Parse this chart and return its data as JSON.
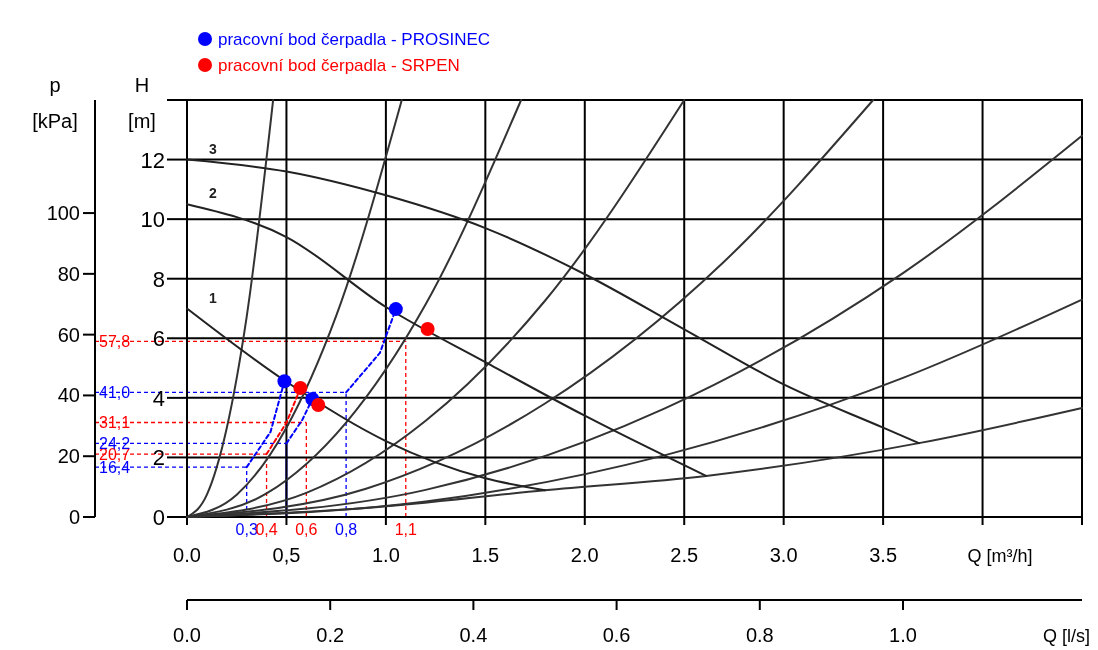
{
  "chart_data": {
    "type": "line",
    "xlabel": "Q [m³/h]",
    "x2label": "Q [l/s]",
    "ylabel": "H [m]",
    "y2label": "p [kPa]",
    "xlim": [
      0,
      4.5
    ],
    "ylim": [
      0,
      14
    ],
    "y2lim": [
      0,
      137.2
    ],
    "x2lim": [
      0,
      1.25
    ],
    "xticks": [
      {
        "value": 0,
        "label": "0.0"
      },
      {
        "value": 0.5,
        "label": "0,5"
      },
      {
        "value": 1,
        "label": "1.0"
      },
      {
        "value": 1.5,
        "label": "1.5"
      },
      {
        "value": 2,
        "label": "2.0"
      },
      {
        "value": 2.5,
        "label": "2.5"
      },
      {
        "value": 3,
        "label": "3.0"
      },
      {
        "value": 3.5,
        "label": "3.5"
      },
      {
        "value": 4,
        "label": null
      },
      {
        "value": 4.5,
        "label": null
      }
    ],
    "yticks": [
      0,
      2,
      4,
      6,
      8,
      10,
      12,
      {
        "value": 14,
        "label": null
      }
    ],
    "y2ticks": [
      0,
      20,
      40,
      60,
      80,
      100
    ],
    "x2ticks": [
      {
        "value": 0,
        "label": "0.0"
      },
      {
        "value": 0.2,
        "label": "0.2"
      },
      {
        "value": 0.4,
        "label": "0.4"
      },
      {
        "value": 0.6,
        "label": "0.6"
      },
      {
        "value": 0.8,
        "label": "0.8"
      },
      {
        "value": 1.0,
        "label": "1.0"
      }
    ],
    "grid": true,
    "legend": "top left",
    "ref_lines": [
      {
        "axis": "y2",
        "value": 16.4,
        "label": "16,4",
        "color": "#0000ff",
        "line_style": "dashed"
      },
      {
        "axis": "x",
        "value": 0.3,
        "label": "0,3",
        "color": "#0000ff",
        "line_style": "dashed"
      },
      {
        "axis": "y2",
        "value": 20.7,
        "label": "20,7",
        "color": "#ff0000",
        "line_style": "dashed"
      },
      {
        "axis": "x",
        "value": 0.4,
        "label": "0,4",
        "color": "#ff0000",
        "line_style": "dashed"
      },
      {
        "axis": "y2",
        "value": 24.2,
        "label": "24,2",
        "color": "#0000ff",
        "line_style": "dashed"
      },
      {
        "axis": "x",
        "value": 0.5,
        "color": "#0000ff",
        "line_style": "solid"
      },
      {
        "axis": "y2",
        "value": 31.1,
        "label": "31,1",
        "color": "#ff0000",
        "line_style": "dashed"
      },
      {
        "axis": "x",
        "value": 0.6,
        "label": "0,6",
        "color": "#ff0000",
        "line_style": "dashed"
      },
      {
        "axis": "y2",
        "value": 41.0,
        "label": "41,0",
        "color": "#0000ff",
        "line_style": "dashed"
      },
      {
        "axis": "x",
        "value": 0.8,
        "label": "0,8",
        "color": "#0000ff",
        "line_style": "dashed"
      },
      {
        "axis": "y2",
        "value": 57.8,
        "label": "57,8",
        "color": "#ff0000",
        "line_style": "dashed"
      },
      {
        "axis": "x",
        "value": 1.1,
        "label": "1,1",
        "color": "#ff0000",
        "line_style": "dashed"
      }
    ],
    "series": [
      {
        "color": "#333333",
        "x": [
          0,
          0.1,
          0.2,
          0.3,
          0.433
        ],
        "values": [
          0,
          0.75,
          2.99,
          6.72,
          14
        ]
      },
      {
        "color": "#333333",
        "x": [
          0,
          0.25,
          0.5,
          0.75,
          1.08
        ],
        "values": [
          0,
          0.75,
          3.0,
          6.75,
          14
        ]
      },
      {
        "color": "#333333",
        "x": [
          0,
          0.4,
          0.8,
          1.2,
          1.68
        ],
        "values": [
          0,
          0.79,
          3.17,
          7.14,
          14
        ]
      },
      {
        "color": "#333333",
        "x": [
          0,
          0.6,
          1.2,
          1.8,
          2.5
        ],
        "values": [
          0,
          0.81,
          3.23,
          7.26,
          14
        ]
      },
      {
        "color": "#333333",
        "x": [
          0,
          0.9,
          1.8,
          2.7,
          3.45
        ],
        "values": [
          0,
          0.95,
          3.81,
          8.57,
          14
        ]
      },
      {
        "color": "#333333",
        "x": [
          0,
          1.2,
          2.4,
          3.6,
          4.5
        ],
        "values": [
          0,
          0.91,
          3.64,
          8.19,
          12.8
        ]
      },
      {
        "color": "#333333",
        "x": [
          0,
          1.2,
          2.4,
          3.6,
          4.5
        ],
        "values": [
          0,
          0.52,
          2.07,
          4.67,
          7.3
        ]
      },
      {
        "color": "#333333",
        "x": [
          0,
          0.9,
          1.8,
          2.61,
          3.68,
          4.5
        ],
        "values": [
          0,
          0.3,
          0.9,
          1.38,
          2.48,
          3.66
        ]
      },
      {
        "name": "1",
        "color": "#222222",
        "x": [
          0,
          0.5,
          1.0,
          1.5,
          1.8
        ],
        "values": [
          7,
          4.54,
          2.55,
          1.3,
          0.9
        ]
      },
      {
        "name": "2",
        "color": "#222222",
        "x": [
          0,
          0.5,
          1.0,
          1.5,
          2.0,
          2.61
        ],
        "values": [
          10.5,
          9.4,
          7.05,
          5.2,
          3.4,
          1.38
        ]
      },
      {
        "name": "3",
        "color": "#222222",
        "x": [
          0,
          0.5,
          1.0,
          1.5,
          2.0,
          2.5,
          3.0,
          3.5,
          3.68
        ],
        "values": [
          12,
          11.6,
          10.8,
          9.7,
          8.15,
          6.3,
          4.45,
          3.0,
          2.48
        ]
      },
      {
        "axis": "y2",
        "line_style": "dashed",
        "color": "#0000ff",
        "x": [
          0.3,
          0.42,
          0.49
        ],
        "values": [
          16.4,
          28,
          44.7
        ]
      },
      {
        "axis": "y2",
        "line_style": "dashed",
        "color": "#ff0000",
        "x": [
          0.4,
          0.5,
          0.57
        ],
        "values": [
          20.7,
          31,
          42.4
        ]
      },
      {
        "axis": "y2",
        "line_style": "dashed",
        "color": "#0000ff",
        "x": [
          0.5,
          0.58,
          0.63
        ],
        "values": [
          24.2,
          32,
          38.8
        ]
      },
      {
        "axis": "y2",
        "line_style": "dashed",
        "color": "#0000ff",
        "x": [
          0.8,
          0.97,
          1.05
        ],
        "values": [
          41.0,
          54,
          68.4
        ]
      },
      {
        "type": "scatter",
        "marker": "circle",
        "name": "pracovní bod čerpadla - PROSINEC",
        "color": "#0000ff",
        "x": [
          0.49,
          0.63,
          1.05
        ],
        "values": [
          4.56,
          3.96,
          6.98
        ]
      },
      {
        "type": "scatter",
        "marker": "circle",
        "name": "pracovní bod čerpadla - SRPEN",
        "color": "#ff0000",
        "x": [
          0.57,
          0.66,
          1.21
        ],
        "values": [
          4.33,
          3.76,
          6.31
        ]
      }
    ]
  }
}
